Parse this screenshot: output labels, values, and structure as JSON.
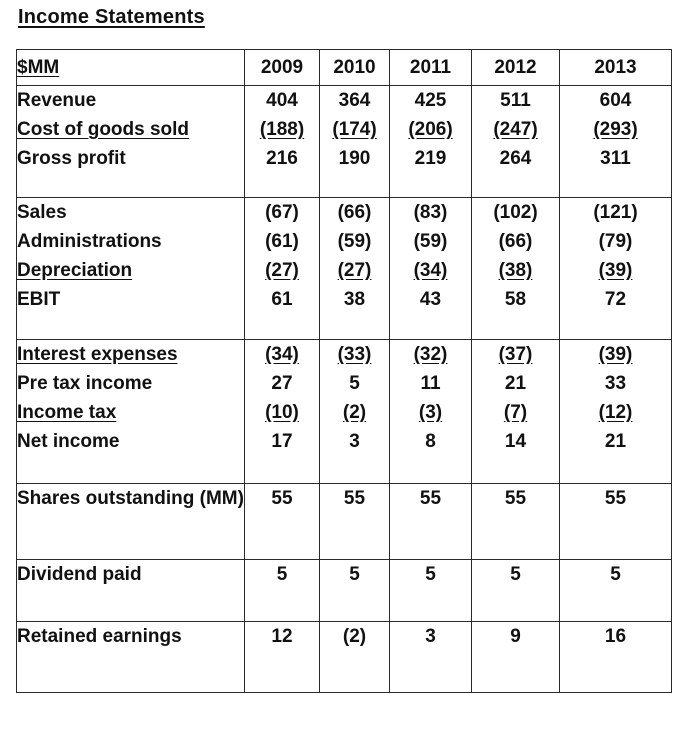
{
  "title": "Income Statements",
  "header": {
    "label": "$MM",
    "years": [
      "2009",
      "2010",
      "2011",
      "2012",
      "2013"
    ]
  },
  "sections": [
    {
      "rows": [
        {
          "label": "Revenue",
          "underline": false,
          "values": [
            "404",
            "364",
            "425",
            "511",
            "604"
          ]
        },
        {
          "label": "Cost of goods sold",
          "underline": true,
          "values": [
            "(188)",
            "(174)",
            "(206)",
            "(247)",
            "(293)"
          ]
        },
        {
          "label": "Gross profit",
          "underline": false,
          "values": [
            "216",
            "190",
            "219",
            "264",
            "311"
          ]
        }
      ]
    },
    {
      "rows": [
        {
          "label": "Sales",
          "underline": false,
          "values": [
            "(67)",
            "(66)",
            "(83)",
            "(102)",
            "(121)"
          ]
        },
        {
          "label": "Administrations",
          "underline": false,
          "values": [
            "(61)",
            "(59)",
            "(59)",
            "(66)",
            "(79)"
          ]
        },
        {
          "label": "Depreciation",
          "underline": true,
          "values": [
            "(27)",
            "(27)",
            "(34)",
            "(38)",
            "(39)"
          ]
        },
        {
          "label": "EBIT",
          "underline": false,
          "values": [
            "61",
            "38",
            "43",
            "58",
            "72"
          ]
        }
      ]
    },
    {
      "rows": [
        {
          "label": "Interest expenses",
          "underline": true,
          "values": [
            "(34)",
            "(33)",
            "(32)",
            "(37)",
            "(39)"
          ]
        },
        {
          "label": "Pre tax income",
          "underline": false,
          "values": [
            "27",
            "5",
            "11",
            "21",
            "33"
          ]
        },
        {
          "label": "Income tax",
          "underline": true,
          "values": [
            "(10)",
            "(2)",
            "(3)",
            "(7)",
            "(12)"
          ]
        },
        {
          "label": "Net income",
          "underline": false,
          "values": [
            "17",
            "3",
            "8",
            "14",
            "21"
          ]
        }
      ]
    }
  ],
  "shares_outstanding": {
    "label": "Shares outstanding (MM)",
    "values": [
      "55",
      "55",
      "55",
      "55",
      "55"
    ]
  },
  "dividend_paid": {
    "label": "Dividend paid",
    "values": [
      "5",
      "5",
      "5",
      "5",
      "5"
    ]
  },
  "retained_earnings": {
    "label": "Retained earnings",
    "values": [
      "12",
      "(2)",
      "3",
      "9",
      "16"
    ]
  }
}
